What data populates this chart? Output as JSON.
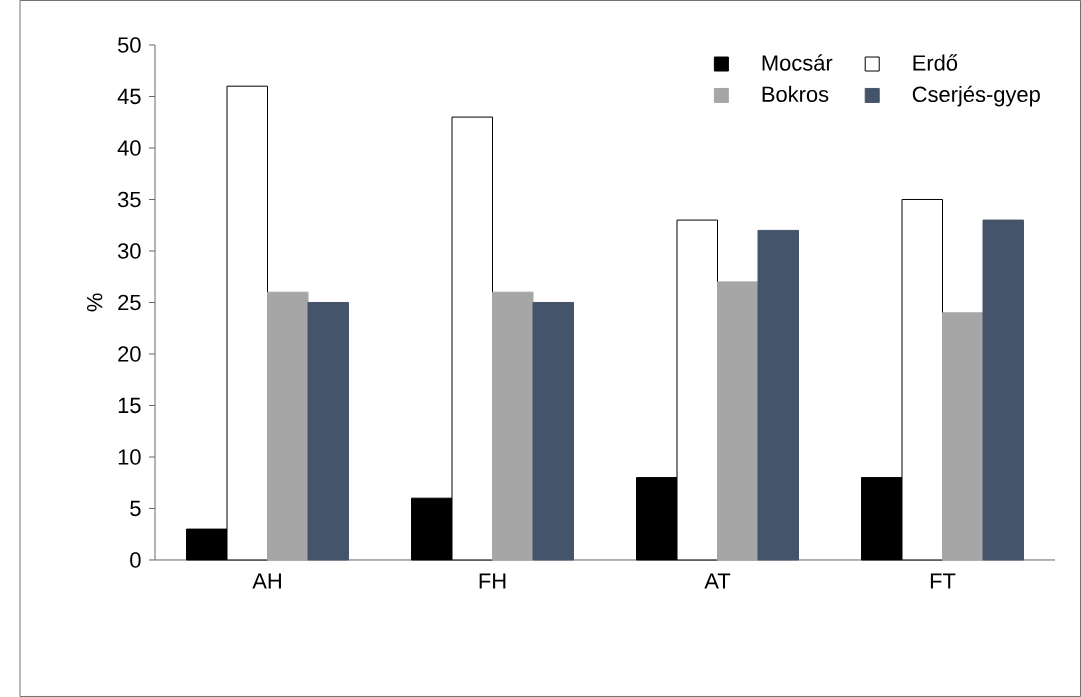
{
  "chart_data": {
    "type": "bar",
    "ylabel": "%",
    "categories": [
      "AH",
      "FH",
      "AT",
      "FT"
    ],
    "series": [
      {
        "name": "Mocsár",
        "color": "#000000",
        "values": [
          3,
          6,
          8,
          8
        ]
      },
      {
        "name": "Erdő",
        "color": "#ffffff",
        "values": [
          46,
          43,
          33,
          35
        ]
      },
      {
        "name": "Bokros",
        "color": "#a6a6a6",
        "values": [
          26,
          26,
          27,
          24
        ]
      },
      {
        "name": "Cserjés-gyep",
        "color": "#44546a",
        "values": [
          25,
          25,
          32,
          33
        ]
      }
    ],
    "ylim": [
      0,
      50
    ],
    "yticks": [
      0,
      5,
      10,
      15,
      20,
      25,
      30,
      35,
      40,
      45,
      50
    ],
    "grid": false,
    "legend": "top right"
  }
}
